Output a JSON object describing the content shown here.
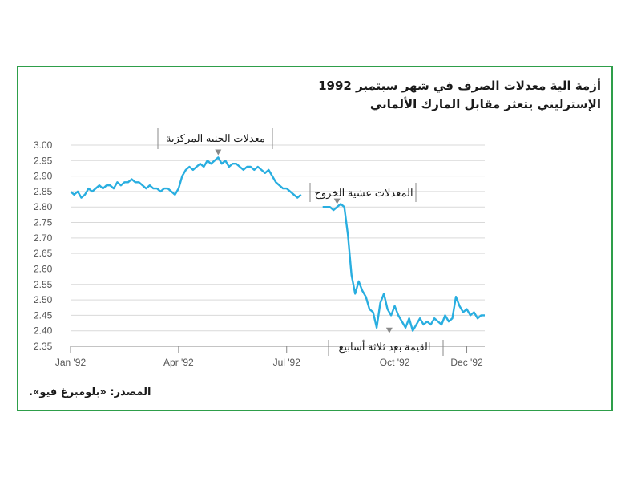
{
  "title_line1": "أزمة الية معدلات الصرف في شهر سبتمبر 1992",
  "title_line2": "الإسترليني يتعثر مقابل المارك الألماني",
  "source": "المصدر: «بلومبرغ فيو».",
  "colors": {
    "frame": "#2e9e4a",
    "line": "#29aee0",
    "grid": "#d9d9d9",
    "text": "#555555"
  },
  "chart_data": {
    "type": "line",
    "ylim": [
      2.35,
      3.0
    ],
    "yticks": [
      "3.00",
      "2.95",
      "2.90",
      "2.85",
      "2.80",
      "2.75",
      "2.70",
      "2.65",
      "2.60",
      "2.55",
      "2.50",
      "2.45",
      "2.40",
      "2.35"
    ],
    "xlim": [
      0,
      11.5
    ],
    "xticks": [
      {
        "x": 0,
        "label": "Jan '92"
      },
      {
        "x": 3,
        "label": "Apr '92"
      },
      {
        "x": 6,
        "label": "Jul '92"
      },
      {
        "x": 9,
        "label": "Oct '92"
      },
      {
        "x": 11,
        "label": "Dec '92"
      }
    ],
    "annotations": [
      {
        "x": 4.1,
        "y": 2.96,
        "text": "معدلات الجنيه المركزية"
      },
      {
        "x": 7.4,
        "y": 2.83,
        "text": "المعدلات عشية الخروج"
      },
      {
        "x": 8.85,
        "y": 2.4,
        "text": "القيمة بعد ثلاثة أسابيع"
      }
    ],
    "series": [
      {
        "x": [
          0.0,
          0.1,
          0.2,
          0.3,
          0.4,
          0.5,
          0.6,
          0.7,
          0.8,
          0.9,
          1.0,
          1.1,
          1.2,
          1.3,
          1.4,
          1.5,
          1.6,
          1.7,
          1.8,
          1.9,
          2.0,
          2.1,
          2.2,
          2.3,
          2.4,
          2.5,
          2.6,
          2.7,
          2.8,
          2.9,
          3.0,
          3.1,
          3.2,
          3.3,
          3.4,
          3.5,
          3.6,
          3.7,
          3.8,
          3.9,
          4.0,
          4.1,
          4.2,
          4.3,
          4.4,
          4.5,
          4.6,
          4.7,
          4.8,
          4.9,
          5.0,
          5.1,
          5.2,
          5.3,
          5.4,
          5.5,
          5.6,
          5.7,
          5.8,
          5.9,
          6.0,
          6.1,
          6.2,
          6.3,
          6.4,
          6.5,
          6.6,
          6.7,
          6.8,
          6.9,
          7.0,
          7.1,
          7.2,
          7.3,
          7.4,
          7.5,
          7.6,
          7.7,
          7.8,
          7.9,
          8.0,
          8.1,
          8.2,
          8.3,
          8.4,
          8.5,
          8.6,
          8.7,
          8.8,
          8.9,
          9.0,
          9.1,
          9.2,
          9.3,
          9.4,
          9.5,
          9.6,
          9.7,
          9.8,
          9.9,
          10.0,
          10.1,
          10.2,
          10.3,
          10.4,
          10.5,
          10.6,
          10.7,
          10.8,
          10.9,
          11.0,
          11.1,
          11.2,
          11.3,
          11.4,
          11.5
        ],
        "values": [
          2.85,
          2.84,
          2.85,
          2.83,
          2.84,
          2.86,
          2.85,
          2.86,
          2.87,
          2.86,
          2.87,
          2.87,
          2.86,
          2.88,
          2.87,
          2.88,
          2.88,
          2.89,
          2.88,
          2.88,
          2.87,
          2.86,
          2.87,
          2.86,
          2.86,
          2.85,
          2.86,
          2.86,
          2.85,
          2.84,
          2.86,
          2.9,
          2.92,
          2.93,
          2.92,
          2.93,
          2.94,
          2.93,
          2.95,
          2.94,
          2.95,
          2.96,
          2.94,
          2.95,
          2.93,
          2.94,
          2.94,
          2.93,
          2.92,
          2.93,
          2.93,
          2.92,
          2.93,
          2.92,
          2.91,
          2.92,
          2.9,
          2.88,
          2.87,
          2.86,
          2.86,
          2.85,
          2.84,
          2.83,
          2.84,
          null,
          null,
          null,
          null,
          null,
          2.8,
          2.8,
          2.8,
          2.79,
          2.8,
          2.81,
          2.8,
          2.71,
          2.58,
          2.52,
          2.56,
          2.53,
          2.51,
          2.47,
          2.46,
          2.41,
          2.49,
          2.52,
          2.47,
          2.45,
          2.48,
          2.45,
          2.43,
          2.41,
          2.44,
          2.4,
          2.42,
          2.44,
          2.42,
          2.43,
          2.42,
          2.44,
          2.43,
          2.42,
          2.45,
          2.43,
          2.44,
          2.51,
          2.48,
          2.46,
          2.47,
          2.45,
          2.46,
          2.44,
          2.45,
          2.45
        ]
      }
    ]
  }
}
